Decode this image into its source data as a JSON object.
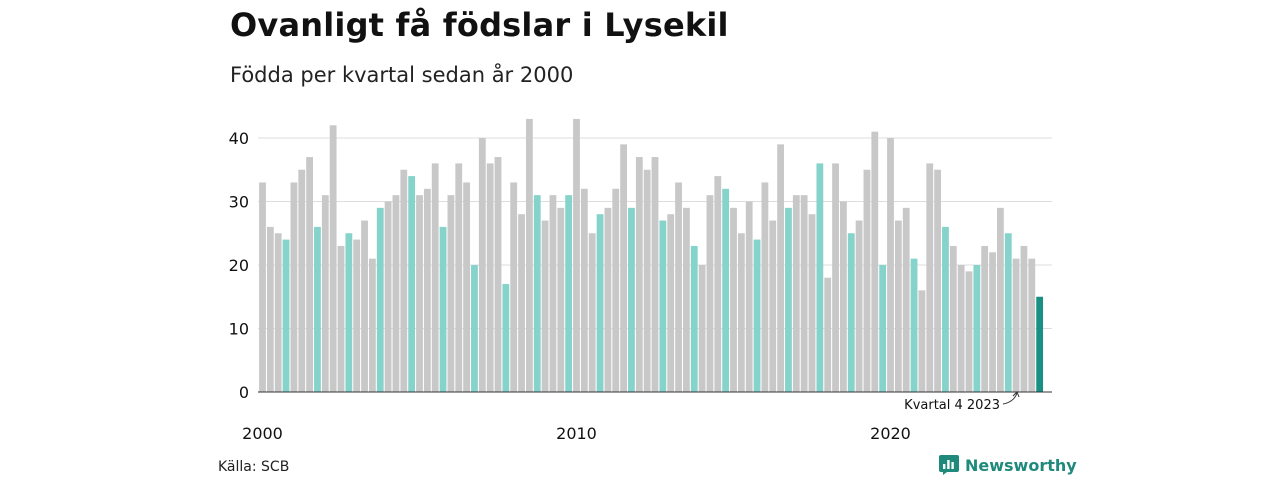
{
  "header": {
    "title": "Ovanligt få födslar i Lysekil",
    "subtitle": "Födda per kvartal sedan år 2000"
  },
  "footer": {
    "source": "Källa: SCB",
    "brand": "Newsworthy"
  },
  "colors": {
    "bar_default": "#c8c8c8",
    "bar_quarter4": "#86d3cb",
    "bar_latest": "#1a8f83",
    "grid": "#dddddd",
    "brand": "#1f8a7c"
  },
  "chart_data": {
    "type": "bar",
    "title": "Ovanligt få födslar i Lysekil",
    "subtitle": "Födda per kvartal sedan år 2000",
    "xlabel": "",
    "ylabel": "",
    "ylim": [
      0,
      45
    ],
    "yticks": [
      0,
      10,
      20,
      30,
      40
    ],
    "x_tick_labels": [
      "2000",
      "2010",
      "2020"
    ],
    "grid": true,
    "highlight": "quarter 4 of each year in light teal; latest bar (Kvartal 4 2023) in dark teal",
    "annotation": "Kvartal 4 2023",
    "start_year": 2000,
    "values": [
      33,
      26,
      25,
      24,
      33,
      35,
      37,
      26,
      31,
      42,
      23,
      25,
      24,
      27,
      21,
      29,
      30,
      31,
      35,
      34,
      31,
      32,
      36,
      26,
      31,
      36,
      33,
      20,
      40,
      36,
      37,
      17,
      33,
      28,
      43,
      31,
      27,
      31,
      29,
      31,
      43,
      32,
      25,
      28,
      29,
      32,
      39,
      29,
      37,
      35,
      37,
      27,
      28,
      33,
      29,
      23,
      20,
      31,
      34,
      32,
      29,
      25,
      30,
      24,
      33,
      27,
      39,
      29,
      31,
      31,
      28,
      36,
      18,
      36,
      30,
      25,
      27,
      35,
      41,
      20,
      40,
      27,
      29,
      21,
      16,
      36,
      35,
      26,
      23,
      20,
      19,
      20,
      23,
      22,
      29,
      25,
      21,
      23,
      21,
      15
    ]
  }
}
